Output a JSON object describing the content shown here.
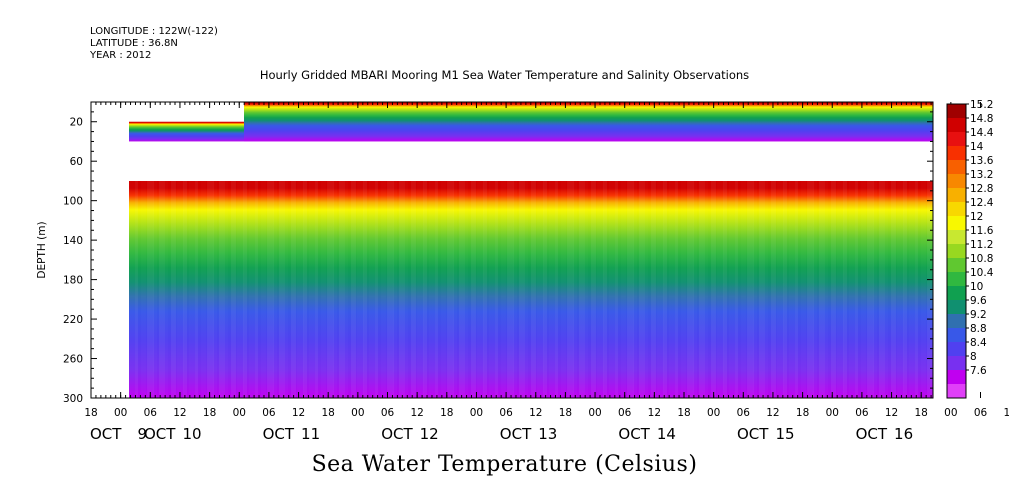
{
  "header": {
    "longitude": "LONGITUDE : 122W(-122)",
    "latitude": "LATITUDE : 36.8N",
    "year": "YEAR : 2012"
  },
  "chart_data": {
    "type": "heatmap",
    "title": "Hourly Gridded MBARI Mooring M1 Sea Water Temperature and Salinity Observations",
    "caption": "Sea Water Temperature (Celsius)",
    "ylabel": "DEPTH (m)",
    "xlabel": "",
    "y_inverted": true,
    "ylim": [
      0,
      300
    ],
    "yticks": [
      20,
      60,
      100,
      140,
      180,
      220,
      260,
      300
    ],
    "x_hours_ticks": [
      "18",
      "00",
      "06",
      "12",
      "18",
      "00",
      "06",
      "12",
      "18",
      "00",
      "06",
      "12",
      "18",
      "00",
      "06",
      "12",
      "18",
      "00",
      "06",
      "12",
      "18",
      "00",
      "06",
      "12",
      "18",
      "00",
      "06",
      "12",
      "18",
      "00",
      "06",
      "12",
      "18",
      "00",
      "06",
      "12",
      "18"
    ],
    "x_date_labels": [
      "OCT 9",
      "OCT 10",
      "OCT 11",
      "OCT 12",
      "OCT 13",
      "OCT 14",
      "OCT 15",
      "OCT 16"
    ],
    "x_date_label_parts": [
      [
        "OCT",
        "9"
      ],
      [
        "OCT",
        "10"
      ],
      [
        "OCT",
        "11"
      ],
      [
        "OCT",
        "12"
      ],
      [
        "OCT",
        "13"
      ],
      [
        "OCT",
        "14"
      ],
      [
        "OCT",
        "15"
      ],
      [
        "OCT",
        "16"
      ]
    ],
    "colorbar": {
      "levels": [
        "15.2",
        "14.8",
        "14.4",
        "14",
        "13.6",
        "13.2",
        "12.8",
        "12.4",
        "12",
        "11.6",
        "11.2",
        "10.8",
        "10.4",
        "10",
        "9.6",
        "9.2",
        "8.8",
        "8.4",
        "8",
        "7.6"
      ],
      "colors": [
        "#a00000",
        "#d00000",
        "#e81010",
        "#f83000",
        "#f86000",
        "#f88800",
        "#f8b000",
        "#f8d800",
        "#f8f800",
        "#c8e830",
        "#98d820",
        "#60c830",
        "#30b840",
        "#10a050",
        "#109070",
        "#3070b0",
        "#3858e8",
        "#5040f0",
        "#7830f0",
        "#c000f0",
        "#e040f8"
      ]
    },
    "profile": [
      {
        "depth": 10,
        "temp": 14.9
      },
      {
        "depth": 20,
        "temp": 14.3
      },
      {
        "depth": 30,
        "temp": 13.0
      },
      {
        "depth": 40,
        "temp": 12.0
      },
      {
        "depth": 80,
        "temp": 10.9
      },
      {
        "depth": 100,
        "temp": 10.7
      },
      {
        "depth": 120,
        "temp": 10.2
      },
      {
        "depth": 140,
        "temp": 9.7
      },
      {
        "depth": 160,
        "temp": 9.3
      },
      {
        "depth": 180,
        "temp": 9.0
      },
      {
        "depth": 220,
        "temp": 8.6
      },
      {
        "depth": 260,
        "temp": 8.1
      },
      {
        "depth": 300,
        "temp": 7.8
      }
    ],
    "gap_depth_range": [
      40,
      80
    ]
  }
}
